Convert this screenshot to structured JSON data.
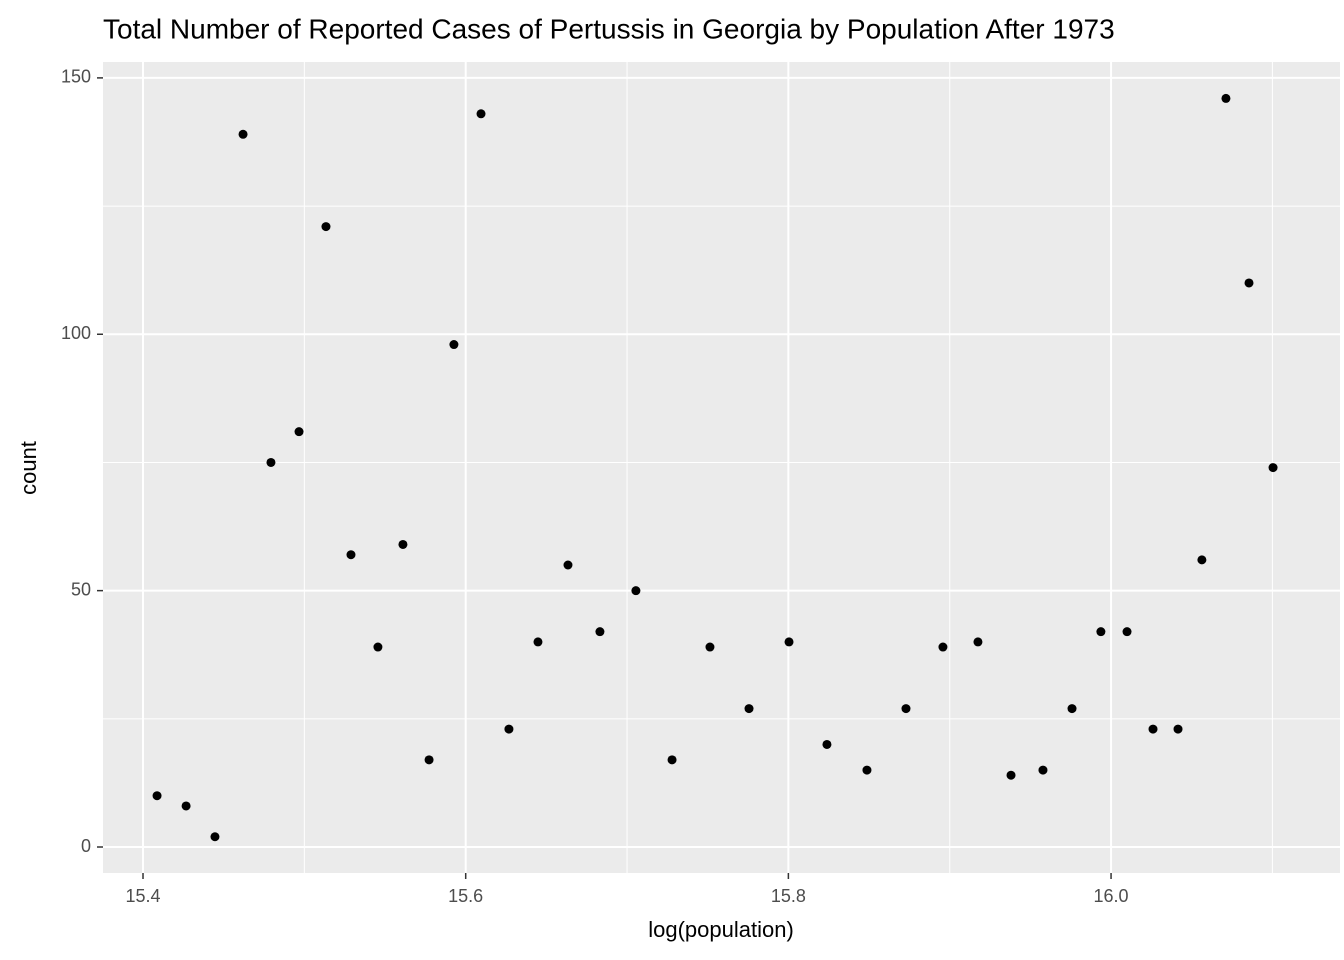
{
  "chart_data": {
    "type": "scatter",
    "title": "Total Number of Reported Cases of Pertussis in Georgia by Population After 1973",
    "x_label": "log(population)",
    "y_label": "count",
    "x": [
      15.4087,
      15.4267,
      15.4446,
      15.462,
      15.4793,
      15.4967,
      15.5134,
      15.5289,
      15.5456,
      15.5611,
      15.5773,
      15.5927,
      15.6095,
      15.6268,
      15.6448,
      15.6634,
      15.6832,
      15.7055,
      15.7279,
      15.7514,
      15.7756,
      15.8004,
      15.8239,
      15.8487,
      15.8729,
      15.8958,
      15.9175,
      15.938,
      15.9578,
      15.9758,
      15.9937,
      16.0099,
      16.026,
      16.0415,
      16.0563,
      16.0712,
      16.0855,
      16.1004
    ],
    "values": [
      10,
      8,
      2,
      139,
      75,
      81,
      121,
      57,
      39,
      59,
      17,
      98,
      143,
      23,
      40,
      55,
      42,
      50,
      17,
      39,
      27,
      40,
      20,
      15,
      27,
      39,
      40,
      14,
      15,
      27,
      42,
      42,
      23,
      23,
      56,
      146,
      110,
      74
    ],
    "color": "#000000",
    "xlim": [
      15.3752,
      16.1419
    ],
    "ylim": [
      -5.07,
      153.1
    ],
    "xticks": [
      15.4,
      15.6,
      15.8,
      {
        "value": 16,
        "label": "16.0"
      }
    ],
    "yticks": [
      0,
      50,
      100,
      150
    ],
    "x_minor_ticks": [
      15.5,
      15.7,
      15.9,
      16.1
    ],
    "y_minor_ticks": [
      25,
      75,
      125
    ],
    "grid": true
  }
}
